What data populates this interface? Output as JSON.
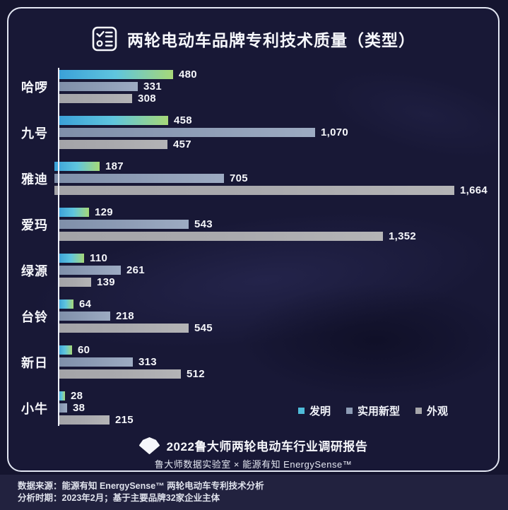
{
  "header": {
    "title": "两轮电动车品牌专利技术质量（类型）",
    "icon": "checklist-icon"
  },
  "chart_data": {
    "type": "bar",
    "orientation": "horizontal",
    "title": "两轮电动车品牌专利技术质量（类型）",
    "categories": [
      "哈啰",
      "九号",
      "雅迪",
      "爱玛",
      "绿源",
      "台铃",
      "新日",
      "小牛"
    ],
    "series": [
      {
        "name": "发明",
        "gradient": [
          "#3aa0d8",
          "#5fc5de",
          "#a6d878"
        ],
        "values": [
          480,
          458,
          187,
          129,
          110,
          64,
          60,
          28
        ]
      },
      {
        "name": "实用新型",
        "gradient": [
          "#7f8fa9",
          "#8d9cb5",
          "#9dabc2"
        ],
        "values": [
          331,
          1070,
          705,
          543,
          261,
          218,
          313,
          38
        ]
      },
      {
        "name": "外观",
        "gradient": [
          "#a4a4a8",
          "#a9a9ad",
          "#b4b4b6"
        ],
        "values": [
          308,
          457,
          1664,
          1352,
          139,
          545,
          512,
          215
        ]
      }
    ],
    "xmax": 1664,
    "value_labels": true,
    "grid": false,
    "legend_position": "bottom-right"
  },
  "legend": {
    "items": [
      {
        "label": "发明",
        "color": "#4fbcd9"
      },
      {
        "label": "实用新型",
        "color": "#8d9cb5"
      },
      {
        "label": "外观",
        "color": "#a6a6aa"
      }
    ]
  },
  "footer": {
    "logo": "gem-logo-icon",
    "line1": "2022鲁大师两轮电动车行业调研报告",
    "line2": "鲁大师数据实验室 × 能源有知 EnergySense™"
  },
  "source_bar": {
    "line1": "数据来源：能源有知 EnergySense™ 两轮电动车专利技术分析",
    "line2": "分析时期：2023年2月；基于主要品牌32家企业主体"
  },
  "colors": {
    "page_background": "#15152f",
    "card_background": "#181836",
    "card_border": "#e3e7f3",
    "source_bar_background": "#22223f",
    "text_primary": "#ffffff",
    "axis_line": "#eef1f9"
  }
}
